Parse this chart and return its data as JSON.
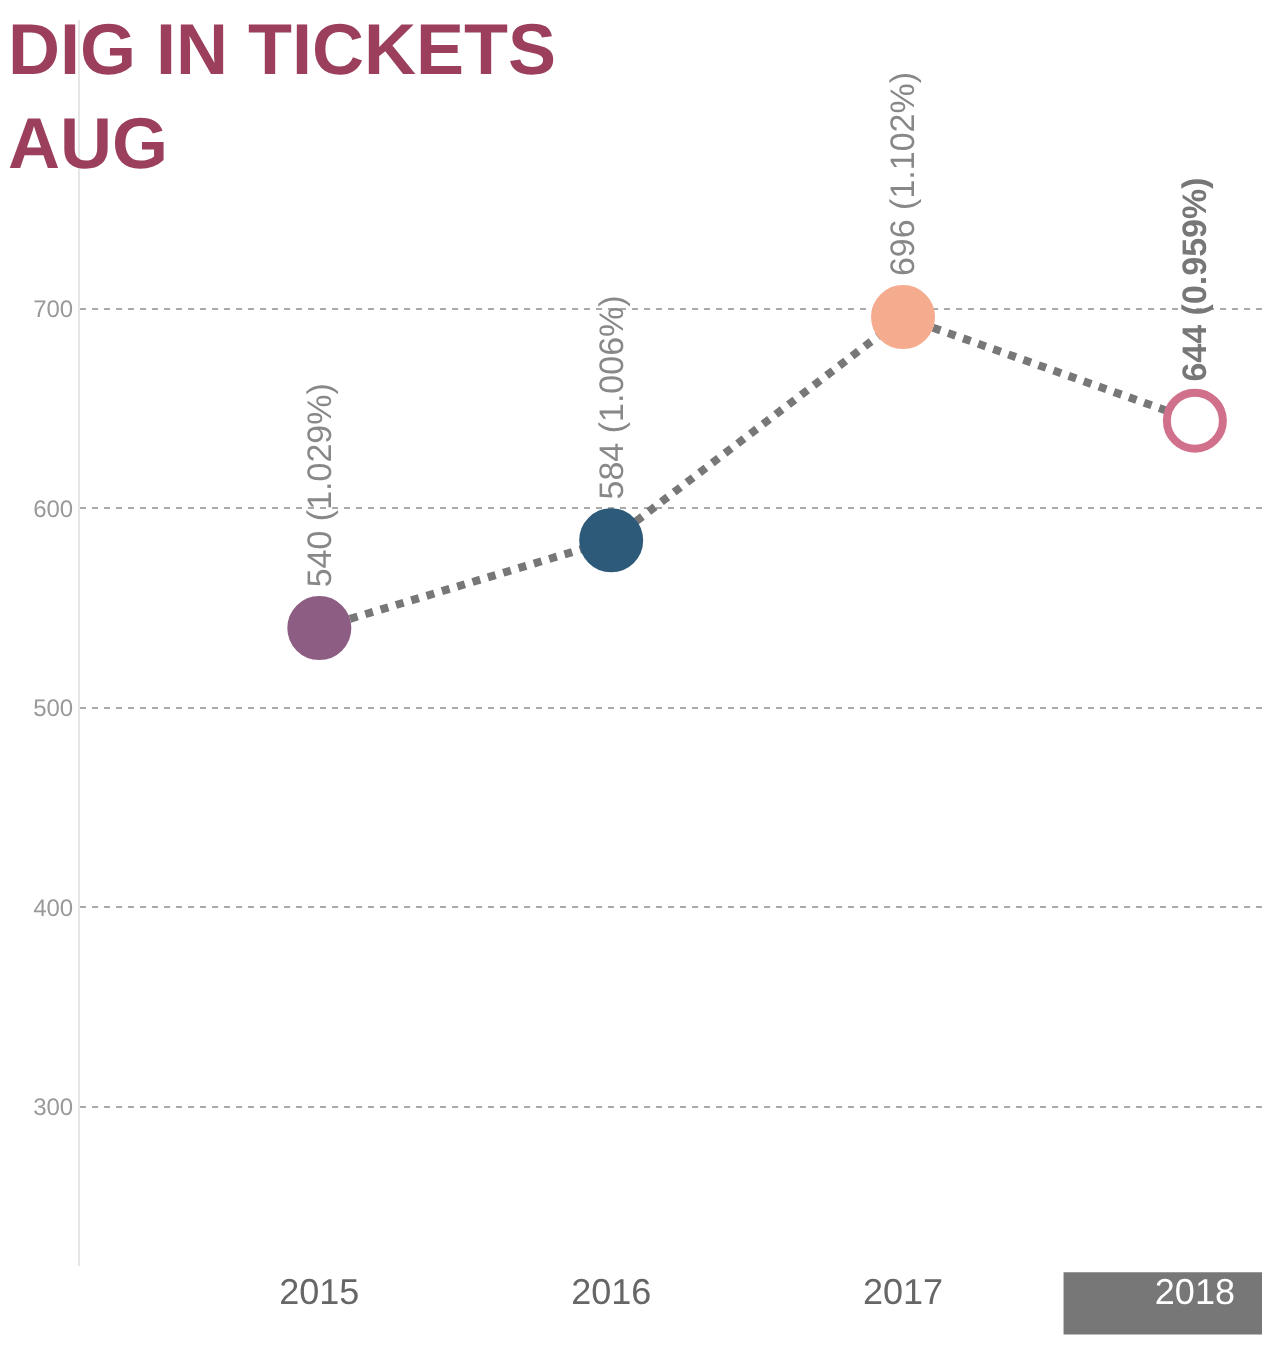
{
  "chart_data": {
    "type": "line",
    "title": "DIG IN TICKETS",
    "subtitle": "AUG",
    "categories": [
      "2015",
      "2016",
      "2017",
      "2018"
    ],
    "values": [
      540,
      584,
      696,
      644
    ],
    "colors": [
      "#8e5d84",
      "#2e5a7a",
      "#f5ab8e",
      "#d0708a"
    ],
    "value_labels": [
      "540 (1.029%)",
      "584 (1.006%)",
      "696 (1.102%)",
      "644 (0.959%)"
    ],
    "ylim": [
      220,
      845
    ],
    "yticks": [
      300,
      400,
      500,
      600,
      700
    ],
    "grid": "y",
    "marker": "circle",
    "line_style": "dotted"
  }
}
